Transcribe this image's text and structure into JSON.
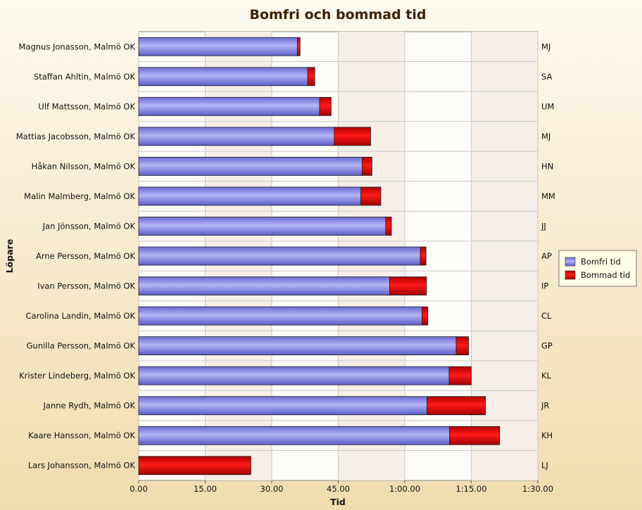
{
  "chart_data": {
    "type": "bar",
    "orientation": "horizontal",
    "stacked": true,
    "title": "Bomfri och bommad tid",
    "xlabel": "Tid",
    "ylabel": "Löpare",
    "xlim": [
      0,
      90
    ],
    "x_ticks": [
      {
        "value": 0,
        "label": "0.00"
      },
      {
        "value": 15,
        "label": "15.00"
      },
      {
        "value": 30,
        "label": "30.00"
      },
      {
        "value": 45,
        "label": "45.00"
      },
      {
        "value": 60,
        "label": "1:00.00"
      },
      {
        "value": 75,
        "label": "1:15.00"
      },
      {
        "value": 90,
        "label": "1:30.00"
      }
    ],
    "categories": [
      "Magnus Jonasson, Malmö OK",
      "Staffan Ahltin, Malmö OK",
      "Ulf Mattsson, Malmö OK",
      "Mattias Jacobsson, Malmö OK",
      "Håkan Nilsson, Malmö OK",
      "Malin Malmberg, Malmö OK",
      "Jan Jönsson, Malmö OK",
      "Arne Persson, Malmö OK",
      "Ivan Persson, Malmö OK",
      "Carolina Landin, Malmö OK",
      "Gunilla Persson, Malmö OK",
      "Krister Lindeberg, Malmö OK",
      "Janne Rydh, Malmö OK",
      "Kaare Hansson, Malmö OK",
      "Lars Johansson, Malmö OK"
    ],
    "right_labels": [
      "MJ",
      "SA",
      "UM",
      "MJ",
      "HN",
      "MM",
      "JJ",
      "AP",
      "IP",
      "CL",
      "GP",
      "KL",
      "JR",
      "KH",
      "LJ"
    ],
    "series": [
      {
        "name": "Bomfri tid",
        "color": "#8080e0",
        "values": [
          35.8,
          38.1,
          40.8,
          44.1,
          50.4,
          50.1,
          55.7,
          63.5,
          56.6,
          63.9,
          71.6,
          70.0,
          65.0,
          70.1,
          0
        ]
      },
      {
        "name": "Bommad tid",
        "color": "#e00000",
        "values": [
          0.6,
          1.6,
          2.6,
          8.2,
          2.2,
          4.5,
          1.3,
          1.3,
          8.3,
          1.3,
          2.8,
          5.0,
          13.2,
          11.3,
          25.3
        ]
      }
    ],
    "grid": true,
    "legend": "right"
  }
}
